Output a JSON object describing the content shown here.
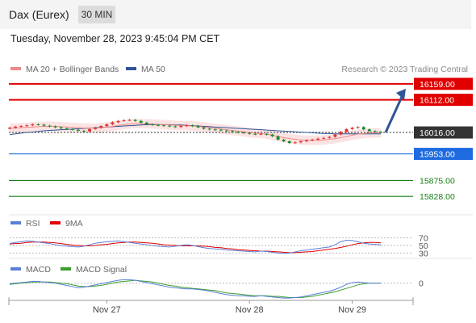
{
  "header": {
    "title": "Dax (Eurex)",
    "interval": "30 MIN"
  },
  "timestamp": "Tuesday, November 28, 2023 9:45:04 PM CET",
  "legend": {
    "ma20": {
      "label": "MA 20 + Bollinger Bands",
      "color": "#f08a8a"
    },
    "ma50": {
      "label": "MA 50",
      "color": "#2f5597"
    },
    "credit": "Research © 2023 Trading Central"
  },
  "rsi_legend": {
    "rsi": "RSI",
    "ma": "9MA"
  },
  "macd_legend": {
    "macd": "MACD",
    "signal": "MACD Signal"
  },
  "chart_data": [
    {
      "type": "candlestick",
      "ylim": [
        15800,
        16180
      ],
      "levels": [
        {
          "label": "16159.00",
          "value": 16159,
          "color": "#e00000"
        },
        {
          "label": "16112.00",
          "value": 16112,
          "color": "#e00000"
        },
        {
          "label": "16016.00",
          "value": 16016,
          "color": "#333333"
        },
        {
          "label": "15953.00",
          "value": 15953,
          "color": "#1e6be0"
        },
        {
          "label": "15875.00",
          "value": 15875,
          "color": "#1a7f1a"
        },
        {
          "label": "15828.00",
          "value": 15828,
          "color": "#1a7f1a"
        }
      ],
      "close": [
        16030,
        16033,
        16035,
        16037,
        16040,
        16039,
        16036,
        16034,
        16031,
        16028,
        16026,
        16024,
        16021,
        16019,
        16026,
        16030,
        16035,
        16040,
        16046,
        16050,
        16052,
        16053,
        16050,
        16045,
        16040,
        16038,
        16037,
        16036,
        16034,
        16032,
        16035,
        16037,
        16035,
        16031,
        16027,
        16025,
        16024,
        16022,
        16020,
        16018,
        16016,
        16015,
        16012,
        16011,
        16012,
        16010,
        16005,
        15995,
        15990,
        15985,
        15987,
        15990,
        15993,
        15995,
        15998,
        16000,
        16003,
        16010,
        16018,
        16026,
        16030,
        16032,
        16025,
        16020,
        16018,
        16016
      ],
      "ma20": [
        16028,
        16029,
        16030,
        16031,
        16032,
        16033,
        16034,
        16034,
        16034,
        16033,
        16032,
        16031,
        16030,
        16029,
        16029,
        16029,
        16030,
        16032,
        16034,
        16037,
        16039,
        16041,
        16042,
        16042,
        16042,
        16041,
        16040,
        16039,
        16038,
        16037,
        16036,
        16036,
        16035,
        16034,
        16032,
        16030,
        16028,
        16026,
        16024,
        16022,
        16020,
        16018,
        16016,
        16014,
        16013,
        16011,
        16008,
        16004,
        16001,
        15998,
        15996,
        15994,
        15993,
        15993,
        15993,
        15994,
        15996,
        15998,
        16001,
        16004,
        16008,
        16011,
        16013,
        16014,
        16015,
        16015
      ],
      "ma50": [
        16010,
        16012,
        16014,
        16016,
        16017,
        16019,
        16021,
        16022,
        16023,
        16024,
        16025,
        16026,
        16027,
        16028,
        16029,
        16030,
        16031,
        16032,
        16033,
        16034,
        16035,
        16036,
        16037,
        16038,
        16039,
        16039,
        16039,
        16039,
        16039,
        16038,
        16038,
        16037,
        16036,
        16035,
        16034,
        16033,
        16032,
        16031,
        16030,
        16029,
        16028,
        16027,
        16026,
        16025,
        16024,
        16023,
        16022,
        16021,
        16020,
        16019,
        16018,
        16017,
        16016,
        16015,
        16014,
        16013,
        16013,
        16012,
        16012,
        16012,
        16012,
        16012,
        16012,
        16012,
        16012,
        16012
      ],
      "forecast": {
        "from": 16016,
        "to": 16159
      }
    },
    {
      "type": "line",
      "name": "RSI",
      "levels": [
        {
          "label": "70",
          "value": 70
        },
        {
          "label": "50",
          "value": 50
        },
        {
          "label": "30",
          "value": 30
        }
      ],
      "ylim": [
        20,
        80
      ],
      "values": [
        55,
        58,
        60,
        62,
        61,
        59,
        57,
        55,
        52,
        50,
        48,
        47,
        46,
        48,
        52,
        56,
        58,
        60,
        61,
        62,
        60,
        58,
        56,
        54,
        52,
        50,
        48,
        47,
        46,
        48,
        50,
        52,
        50,
        47,
        44,
        42,
        41,
        40,
        38,
        37,
        36,
        35,
        34,
        33,
        35,
        34,
        32,
        30,
        29,
        30,
        33,
        36,
        38,
        40,
        42,
        44,
        46,
        52,
        60,
        64,
        63,
        60,
        56,
        54,
        53,
        52
      ],
      "ma9": [
        54,
        55,
        56,
        58,
        59,
        59,
        59,
        58,
        57,
        55,
        53,
        51,
        50,
        49,
        49,
        50,
        52,
        53,
        55,
        57,
        58,
        59,
        59,
        58,
        57,
        56,
        54,
        52,
        51,
        50,
        49,
        49,
        49,
        49,
        48,
        47,
        45,
        44,
        42,
        41,
        39,
        38,
        37,
        36,
        35,
        35,
        34,
        33,
        32,
        31,
        31,
        32,
        33,
        34,
        36,
        38,
        40,
        42,
        45,
        48,
        52,
        55,
        57,
        58,
        58,
        57
      ]
    },
    {
      "type": "line",
      "name": "MACD",
      "levels": [
        {
          "label": "0",
          "value": 0
        }
      ],
      "ylim": [
        -30,
        15
      ],
      "macd": [
        -1,
        0,
        1,
        2,
        3,
        3,
        2,
        1,
        0,
        -2,
        -4,
        -6,
        -8,
        -7,
        -5,
        -3,
        -1,
        1,
        3,
        5,
        6,
        6,
        5,
        3,
        1,
        -1,
        -3,
        -5,
        -7,
        -8,
        -9,
        -10,
        -10,
        -11,
        -12,
        -14,
        -16,
        -18,
        -20,
        -21,
        -22,
        -22,
        -23,
        -23,
        -22,
        -23,
        -24,
        -25,
        -26,
        -26,
        -25,
        -24,
        -22,
        -20,
        -18,
        -16,
        -14,
        -11,
        -7,
        -2,
        1,
        2,
        1,
        0,
        0,
        0
      ],
      "signal": [
        -2,
        -1,
        0,
        1,
        2,
        2,
        2,
        2,
        1,
        0,
        -1,
        -3,
        -5,
        -6,
        -6,
        -5,
        -4,
        -2,
        0,
        2,
        3,
        4,
        5,
        4,
        3,
        2,
        0,
        -2,
        -4,
        -5,
        -7,
        -8,
        -9,
        -10,
        -11,
        -12,
        -13,
        -15,
        -17,
        -18,
        -19,
        -20,
        -21,
        -22,
        -22,
        -22,
        -23,
        -23,
        -24,
        -25,
        -25,
        -25,
        -24,
        -23,
        -21,
        -19,
        -17,
        -15,
        -12,
        -9,
        -6,
        -3,
        -1,
        0,
        0,
        0
      ]
    },
    {
      "type": "axis",
      "x_ticks": [
        {
          "label": "Nov 27",
          "index": 17
        },
        {
          "label": "Nov 28",
          "index": 42
        },
        {
          "label": "Nov 29",
          "index": 60
        }
      ]
    }
  ]
}
